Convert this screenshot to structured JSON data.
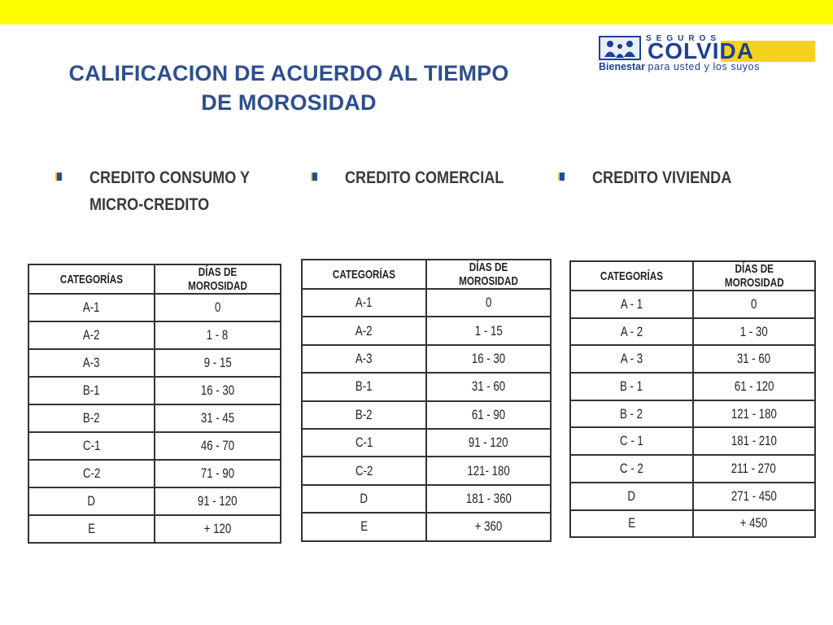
{
  "header": {
    "title_line1": "CALIFICACION DE ACUERDO AL TIEMPO",
    "title_line2": "DE MOROSIDAD",
    "accent_color": "#ffff00",
    "title_color": "#2e4e8f"
  },
  "logo": {
    "seguros": "SEGUROS",
    "brand": "COLVIDA",
    "tagline_bold": "Bienestar",
    "tagline_rest": "para usted y los suyos"
  },
  "sections": [
    {
      "heading_line1": "CREDITO CONSUMO Y",
      "heading_line2": "MICRO-CREDITO",
      "table": {
        "headers": [
          "CATEGORÍAS",
          "DÍAS DE MOROSIDAD"
        ],
        "rows": [
          [
            "A-1",
            "0"
          ],
          [
            "A-2",
            "1 - 8"
          ],
          [
            "A-3",
            "9 - 15"
          ],
          [
            "B-1",
            "16 - 30"
          ],
          [
            "B-2",
            "31 - 45"
          ],
          [
            "C-1",
            "46 - 70"
          ],
          [
            "C-2",
            "71 - 90"
          ],
          [
            "D",
            "91 - 120"
          ],
          [
            "E",
            "+ 120"
          ]
        ]
      }
    },
    {
      "heading_line1": "CREDITO COMERCIAL",
      "heading_line2": "",
      "table": {
        "headers": [
          "CATEGORÍAS",
          "DÍAS DE MOROSIDAD"
        ],
        "rows": [
          [
            "A-1",
            "0"
          ],
          [
            "A-2",
            "1 - 15"
          ],
          [
            "A-3",
            "16 - 30"
          ],
          [
            "B-1",
            "31 - 60"
          ],
          [
            "B-2",
            "61 - 90"
          ],
          [
            "C-1",
            "91 - 120"
          ],
          [
            "C-2",
            "121- 180"
          ],
          [
            "D",
            "181 - 360"
          ],
          [
            "E",
            "+ 360"
          ]
        ]
      }
    },
    {
      "heading_line1": "CREDITO VIVIENDA",
      "heading_line2": "",
      "table": {
        "headers": [
          "CATEGORÍAS",
          "DÍAS DE MOROSIDAD"
        ],
        "rows": [
          [
            "A - 1",
            "0"
          ],
          [
            "A - 2",
            "1 - 30"
          ],
          [
            "A - 3",
            "31 - 60"
          ],
          [
            "B - 1",
            "61 - 120"
          ],
          [
            "B - 2",
            "121 - 180"
          ],
          [
            "C - 1",
            "181 - 210"
          ],
          [
            "C - 2",
            "211 - 270"
          ],
          [
            "D",
            "271 - 450"
          ],
          [
            "E",
            "+ 450"
          ]
        ]
      }
    }
  ]
}
